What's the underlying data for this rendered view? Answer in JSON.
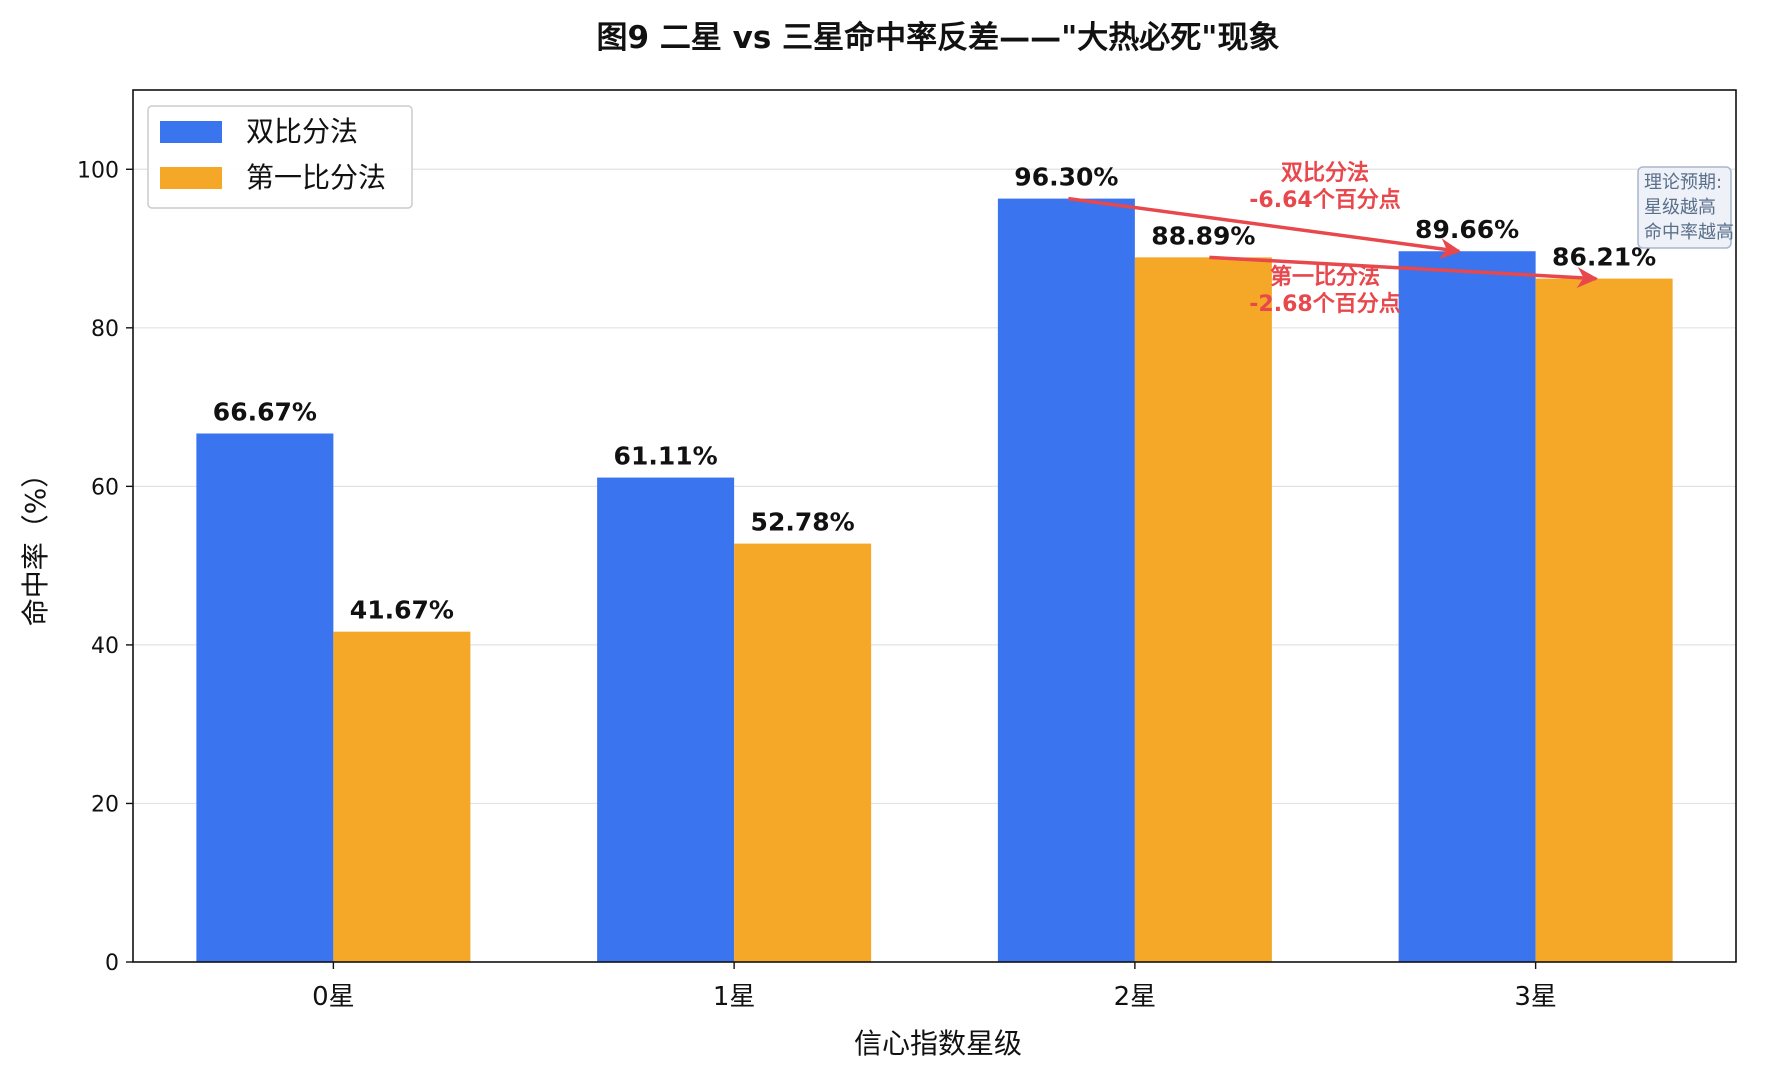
{
  "chart_data": {
    "type": "bar",
    "title": "图9 二星 vs 三星命中率反差——\"大热必死\"现象",
    "xlabel": "信心指数星级",
    "ylabel": "命中率（%）",
    "categories": [
      "0星",
      "1星",
      "2星",
      "3星"
    ],
    "ylim": [
      0,
      110
    ],
    "yticks": [
      0,
      20,
      40,
      60,
      80,
      100
    ],
    "grid": "horizontal",
    "legend_position": "top-left",
    "series": [
      {
        "name": "双比分法",
        "color": "#3b74ef",
        "values": [
          66.67,
          61.11,
          96.3,
          89.66
        ],
        "labels": [
          "66.67%",
          "61.11%",
          "96.30%",
          "89.66%"
        ]
      },
      {
        "name": "第一比分法",
        "color": "#f5a827",
        "values": [
          41.67,
          52.78,
          88.89,
          86.21
        ],
        "labels": [
          "41.67%",
          "52.78%",
          "88.89%",
          "86.21%"
        ]
      }
    ],
    "annotations": [
      {
        "series": 0,
        "from_category": "2星",
        "to_category": "3星",
        "line1": "双比分法",
        "line2": "-6.64个百分点",
        "color": "#e8474c"
      },
      {
        "series": 1,
        "from_category": "2星",
        "to_category": "3星",
        "line1": "第一比分法",
        "line2": "-2.68个百分点",
        "color": "#e8474c"
      }
    ],
    "note": {
      "lines": [
        "理论预期:",
        "星级越高",
        "命中率越高"
      ]
    }
  }
}
